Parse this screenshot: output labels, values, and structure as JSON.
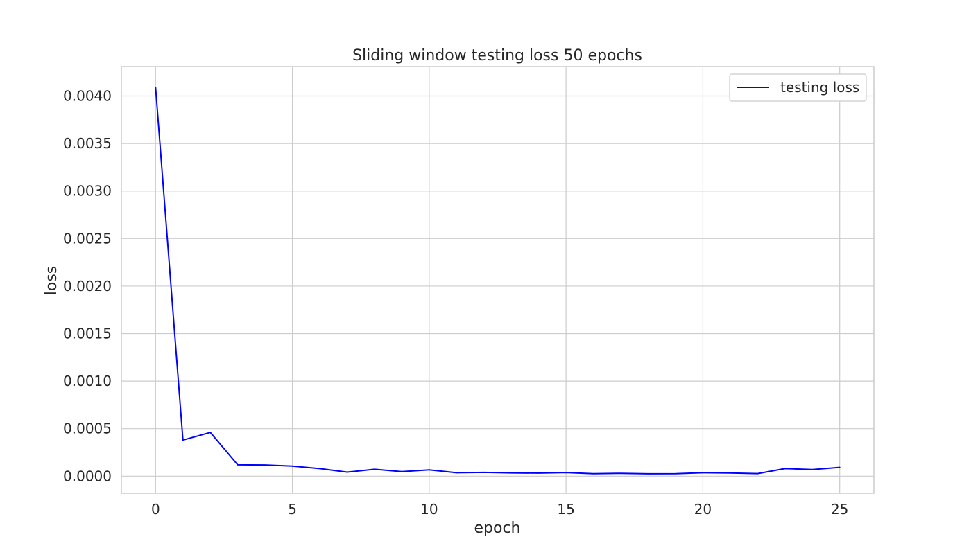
{
  "chart_data": {
    "type": "line",
    "title": "Sliding window testing loss 50 epochs",
    "xlabel": "epoch",
    "ylabel": "loss",
    "xlim": [
      -1.25,
      26.25
    ],
    "ylim": [
      -0.00018,
      0.00431
    ],
    "xticks": [
      0,
      5,
      10,
      15,
      20,
      25
    ],
    "xtick_labels": [
      "0",
      "5",
      "10",
      "15",
      "20",
      "25"
    ],
    "yticks": [
      0,
      0.0005,
      0.001,
      0.0015,
      0.002,
      0.0025,
      0.003,
      0.0035,
      0.004
    ],
    "ytick_labels": [
      "0.0000",
      "0.0005",
      "0.0010",
      "0.0015",
      "0.0020",
      "0.0025",
      "0.0030",
      "0.0035",
      "0.0040"
    ],
    "grid": true,
    "legend_position": "top-right",
    "series": [
      {
        "name": "testing loss",
        "color": "#0000ff",
        "x": [
          0,
          1,
          2,
          3,
          4,
          5,
          6,
          7,
          8,
          9,
          10,
          11,
          12,
          13,
          14,
          15,
          16,
          17,
          18,
          19,
          20,
          21,
          22,
          23,
          24,
          25
        ],
        "y": [
          0.00409,
          0.00038,
          0.00046,
          0.00012,
          0.000118,
          0.000106,
          8e-05,
          4.2e-05,
          7.2e-05,
          4.8e-05,
          6.6e-05,
          3.6e-05,
          4e-05,
          3.4e-05,
          3.2e-05,
          3.8e-05,
          2.6e-05,
          3e-05,
          2.5e-05,
          2.6e-05,
          3.6e-05,
          3.3e-05,
          2.7e-05,
          8e-05,
          7e-05,
          9.2e-05
        ]
      }
    ]
  }
}
